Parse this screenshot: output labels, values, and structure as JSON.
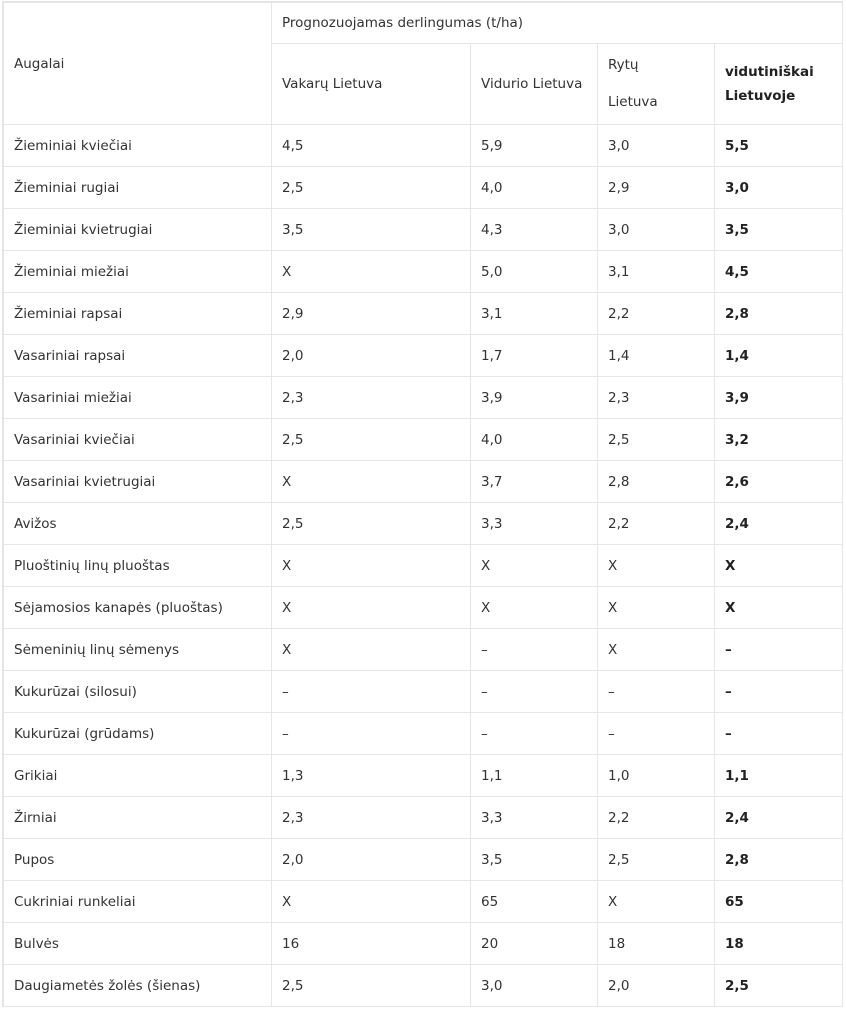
{
  "table": {
    "header": {
      "row_label": "Augalai",
      "group_label": "Prognozuojamas derlingumas (t/ha)",
      "columns": [
        "Vakarų Lietuva",
        "Vidurio Lietuva",
        "Rytų Lietuva",
        "vidutiniškai Lietuvoje"
      ],
      "col3_line1": "Rytų",
      "col3_line2": "Lietuva",
      "col4_line1": "vidutiniškai",
      "col4_line2": "Lietuvoje"
    },
    "rows": [
      {
        "crop": "Žieminiai kviečiai",
        "vakaru": "4,5",
        "vidurio": "5,9",
        "rytu": "3,0",
        "vidutiniskai": "5,5"
      },
      {
        "crop": "Žieminiai rugiai",
        "vakaru": "2,5",
        "vidurio": "4,0",
        "rytu": "2,9",
        "vidutiniskai": "3,0"
      },
      {
        "crop": "Žieminiai kvietrugiai",
        "vakaru": "3,5",
        "vidurio": "4,3",
        "rytu": "3,0",
        "vidutiniskai": "3,5"
      },
      {
        "crop": "Žieminiai miežiai",
        "vakaru": "X",
        "vidurio": "5,0",
        "rytu": "3,1",
        "vidutiniskai": "4,5"
      },
      {
        "crop": "Žieminiai rapsai",
        "vakaru": "2,9",
        "vidurio": "3,1",
        "rytu": "2,2",
        "vidutiniskai": "2,8"
      },
      {
        "crop": "Vasariniai rapsai",
        "vakaru": "2,0",
        "vidurio": "1,7",
        "rytu": "1,4",
        "vidutiniskai": "1,4"
      },
      {
        "crop": "Vasariniai miežiai",
        "vakaru": "2,3",
        "vidurio": "3,9",
        "rytu": "2,3",
        "vidutiniskai": "3,9"
      },
      {
        "crop": "Vasariniai kviečiai",
        "vakaru": "2,5",
        "vidurio": "4,0",
        "rytu": "2,5",
        "vidutiniskai": "3,2"
      },
      {
        "crop": "Vasariniai kvietrugiai",
        "vakaru": "X",
        "vidurio": "3,7",
        "rytu": "2,8",
        "vidutiniskai": "2,6"
      },
      {
        "crop": "Avižos",
        "vakaru": "2,5",
        "vidurio": "3,3",
        "rytu": "2,2",
        "vidutiniskai": "2,4"
      },
      {
        "crop": "Pluoštinių linų pluoštas",
        "vakaru": "X",
        "vidurio": "X",
        "rytu": "X",
        "vidutiniskai": "X"
      },
      {
        "crop": "Sėjamosios kanapės (pluoštas)",
        "vakaru": "X",
        "vidurio": "X",
        "rytu": "X",
        "vidutiniskai": "X"
      },
      {
        "crop": "Sėmeninių linų sėmenys",
        "vakaru": "X",
        "vidurio": "–",
        "rytu": "X",
        "vidutiniskai": "–"
      },
      {
        "crop": "Kukurūzai (silosui)",
        "vakaru": "–",
        "vidurio": "–",
        "rytu": "–",
        "vidutiniskai": "–"
      },
      {
        "crop": "Kukurūzai (grūdams)",
        "vakaru": "–",
        "vidurio": "–",
        "rytu": "–",
        "vidutiniskai": "–"
      },
      {
        "crop": "Grikiai",
        "vakaru": "1,3",
        "vidurio": "1,1",
        "rytu": "1,0",
        "vidutiniskai": "1,1"
      },
      {
        "crop": "Žirniai",
        "vakaru": "2,3",
        "vidurio": "3,3",
        "rytu": "2,2",
        "vidutiniskai": "2,4"
      },
      {
        "crop": "Pupos",
        "vakaru": "2,0",
        "vidurio": "3,5",
        "rytu": "2,5",
        "vidutiniskai": "2,8"
      },
      {
        "crop": "Cukriniai runkeliai",
        "vakaru": "X",
        "vidurio": "65",
        "rytu": "X",
        "vidutiniskai": "65"
      },
      {
        "crop": "Bulvės",
        "vakaru": "16",
        "vidurio": "20",
        "rytu": "18",
        "vidutiniskai": "18"
      },
      {
        "crop": "Daugiametės žolės (šienas)",
        "vakaru": "2,5",
        "vidurio": "3,0",
        "rytu": "2,0",
        "vidutiniskai": "2,5"
      }
    ]
  }
}
